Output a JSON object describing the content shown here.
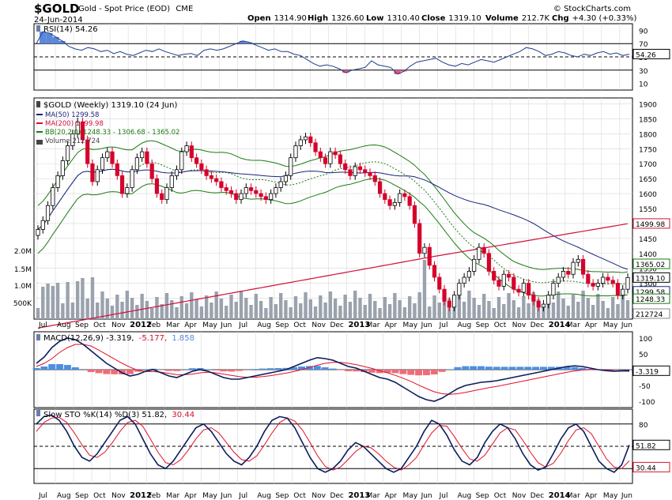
{
  "header": {
    "symbol": "$GOLD",
    "description": "Gold - Spot Price (EOD)",
    "exchange": "CME",
    "date": "24-Jun-2014",
    "brand": "© StockCharts.com",
    "ohlc": [
      {
        "label": "Open",
        "value": "1314.90"
      },
      {
        "label": "High",
        "value": "1326.60"
      },
      {
        "label": "Low",
        "value": "1310.40"
      },
      {
        "label": "Close",
        "value": "1319.10"
      },
      {
        "label": "Volume",
        "value": "212.7K"
      },
      {
        "label": "Chg",
        "value": "+4.30 (+0.33%)"
      }
    ]
  },
  "colors": {
    "background": "#ffffff",
    "panel_border": "#000000",
    "grid": "#d8d8d8",
    "candle_up": "#000000",
    "candle_down": "#d6002a",
    "ma50": "#1a237e",
    "ma200": "#d0103a",
    "bb": "#1b7a12",
    "volume": "#9aa2ad",
    "rsi": "#1f3f8c",
    "rsi_fill_high": "#5b88d8",
    "rsi_fill_low": "#e05a86",
    "macd_line": "#0b1d5c",
    "macd_signal": "#e0102a",
    "hist_pos": "#4d8fe0",
    "hist_neg": "#f06b78",
    "sto_k": "#0b1d5c",
    "sto_d": "#e0102a"
  },
  "x_axis": {
    "labels": [
      "Jul",
      "Aug",
      "Sep",
      "Oct",
      "Nov",
      "2012",
      "Feb",
      "Mar",
      "Apr",
      "May",
      "Jun",
      "Jul",
      "Aug",
      "Sep",
      "Oct",
      "Nov",
      "Dec",
      "2013",
      "Mar",
      "Apr",
      "May",
      "Jun",
      "Jul",
      "Aug",
      "Sep",
      "Oct",
      "Nov",
      "Dec",
      "2014",
      "Mar",
      "Apr",
      "May",
      "Jun"
    ],
    "year_labels": [
      "2012",
      "2013",
      "2014"
    ]
  },
  "rsi_panel": {
    "title": "RSI(14) 54.26",
    "badge": "54.26",
    "ticks": [
      "90",
      "70",
      "50",
      "30",
      "10"
    ]
  },
  "price_panel": {
    "title": "$GOLD (Weekly) 1319.10 (24 Jun)",
    "legend": [
      {
        "id": "ma50",
        "text": "MA(50) 1299.58"
      },
      {
        "id": "ma200",
        "text": "MA(200) 1499.98"
      },
      {
        "id": "bb",
        "text": "BB(20,2.0) 1248.33 - 1306.68 - 1365.02"
      },
      {
        "id": "vol",
        "text": "Volume 212,724"
      }
    ],
    "ticks": [
      "1900",
      "1850",
      "1800",
      "1750",
      "1700",
      "1650",
      "1600",
      "1550",
      "1500",
      "1450",
      "1400",
      "1350",
      "1300",
      "1250",
      "1200"
    ],
    "volume_ticks": [
      "2.0M",
      "1.5M",
      "1.0M",
      "500K"
    ],
    "badges": {
      "ma200": "1499.98",
      "bb_upper": "1365.02",
      "close": "1319.10",
      "ma50": "1299.58",
      "bb_lower": "1248.33",
      "volume": "212724"
    }
  },
  "macd_panel": {
    "title_main": "MACD(12,26,9) -3.319,",
    "title_signal": "-5.177,",
    "title_hist": "1.858",
    "badge": "-3.319",
    "ticks": [
      "100",
      "50",
      "0",
      "-50",
      "-100"
    ]
  },
  "sto_panel": {
    "title_main": "Slow STO %K(14) %D(3) 51.82,",
    "title_d": "30.44",
    "badge_k": "51.82",
    "badge_d": "30.44",
    "ticks": [
      "80",
      "20"
    ]
  },
  "chart_data": [
    {
      "type": "line",
      "name": "RSI(14)",
      "x_range": [
        "Jul 2011",
        "Jun 2014"
      ],
      "ylim": [
        0,
        100
      ],
      "reference_lines": [
        70,
        50,
        30
      ],
      "last_value": 54.26,
      "values": [
        70,
        88,
        86,
        80,
        74,
        66,
        62,
        60,
        64,
        62,
        58,
        60,
        55,
        58,
        54,
        52,
        56,
        60,
        58,
        62,
        58,
        55,
        52,
        54,
        55,
        52,
        60,
        62,
        60,
        62,
        66,
        70,
        74,
        72,
        68,
        64,
        60,
        62,
        58,
        58,
        54,
        52,
        46,
        40,
        36,
        38,
        36,
        32,
        26,
        30,
        32,
        34,
        44,
        38,
        36,
        34,
        24,
        28,
        36,
        42,
        44,
        46,
        48,
        42,
        38,
        36,
        40,
        38,
        42,
        46,
        44,
        42,
        46,
        50,
        54,
        58,
        64,
        62,
        58,
        52,
        54,
        58,
        56,
        52,
        50,
        54,
        52,
        56,
        58,
        54,
        56,
        52,
        54
      ]
    },
    {
      "type": "candlestick",
      "name": "$GOLD (Weekly)",
      "x_range": [
        "Jul 2011",
        "Jun 2014"
      ],
      "ylim": [
        1180,
        1920
      ],
      "last_close": 1319.1,
      "ma50_last": 1299.58,
      "ma200_last": 1499.98,
      "bb_upper_last": 1365.02,
      "bb_mid_last": 1306.68,
      "bb_lower_last": 1248.33,
      "close_values": [
        1480,
        1510,
        1560,
        1620,
        1660,
        1710,
        1760,
        1800,
        1840,
        1780,
        1700,
        1640,
        1680,
        1720,
        1740,
        1700,
        1660,
        1600,
        1620,
        1680,
        1720,
        1740,
        1700,
        1650,
        1600,
        1580,
        1620,
        1660,
        1680,
        1740,
        1760,
        1720,
        1700,
        1680,
        1660,
        1650,
        1640,
        1620,
        1610,
        1600,
        1580,
        1600,
        1620,
        1610,
        1600,
        1590,
        1580,
        1600,
        1620,
        1640,
        1660,
        1720,
        1760,
        1780,
        1790,
        1770,
        1740,
        1720,
        1700,
        1740,
        1730,
        1700,
        1680,
        1660,
        1690,
        1680,
        1670,
        1660,
        1640,
        1600,
        1580,
        1560,
        1570,
        1600,
        1590,
        1560,
        1500,
        1400,
        1420,
        1360,
        1320,
        1280,
        1240,
        1220,
        1260,
        1300,
        1320,
        1340,
        1380,
        1420,
        1400,
        1340,
        1310,
        1290,
        1330,
        1320,
        1280,
        1270,
        1300,
        1260,
        1240,
        1220,
        1230,
        1260,
        1300,
        1320,
        1340,
        1330,
        1370,
        1380,
        1330,
        1300,
        1290,
        1300,
        1320,
        1310,
        1300,
        1260,
        1280,
        1319.1
      ],
      "volume_scale_ticks": [
        "2.0M",
        "1.5M",
        "1.0M",
        "500K"
      ]
    },
    {
      "type": "line",
      "name": "MACD(12,26,9)",
      "x_range": [
        "Jul 2011",
        "Jun 2014"
      ],
      "ylim": [
        -120,
        120
      ],
      "reference_lines": [
        0
      ],
      "last": {
        "macd": -3.319,
        "signal": -5.177,
        "histogram": 1.858
      },
      "macd_values": [
        20,
        40,
        70,
        90,
        100,
        95,
        80,
        60,
        40,
        20,
        5,
        -10,
        -20,
        -15,
        -5,
        0,
        -10,
        -20,
        -25,
        -15,
        -5,
        0,
        -5,
        -15,
        -25,
        -30,
        -30,
        -25,
        -20,
        -15,
        -10,
        -5,
        0,
        10,
        20,
        30,
        38,
        35,
        30,
        20,
        10,
        5,
        -5,
        -15,
        -25,
        -30,
        -40,
        -55,
        -70,
        -85,
        -95,
        -100,
        -90,
        -75,
        -60,
        -50,
        -45,
        -40,
        -38,
        -35,
        -30,
        -25,
        -20,
        -15,
        -10,
        -5,
        0,
        5,
        10,
        12,
        10,
        5,
        0,
        -3,
        -5,
        -4,
        -3.3
      ],
      "signal_values": [
        10,
        20,
        35,
        55,
        70,
        80,
        80,
        75,
        62,
        48,
        34,
        20,
        8,
        -2,
        -6,
        -6,
        -8,
        -12,
        -16,
        -16,
        -14,
        -10,
        -8,
        -10,
        -14,
        -18,
        -22,
        -24,
        -24,
        -22,
        -19,
        -15,
        -11,
        -6,
        0,
        7,
        14,
        20,
        23,
        23,
        20,
        16,
        10,
        4,
        -3,
        -10,
        -18,
        -27,
        -37,
        -49,
        -60,
        -70,
        -76,
        -78,
        -76,
        -72,
        -67,
        -62,
        -57,
        -53,
        -48,
        -43,
        -38,
        -33,
        -28,
        -23,
        -18,
        -13,
        -8,
        -4,
        -1,
        0,
        0,
        -1,
        -3,
        -4,
        -5.2
      ]
    },
    {
      "type": "line",
      "name": "Slow STO %K(14) %D(3)",
      "x_range": [
        "Jul 2011",
        "Jun 2014"
      ],
      "ylim": [
        0,
        100
      ],
      "reference_lines": [
        80,
        50,
        20
      ],
      "last": {
        "k": 51.82,
        "d": 30.44
      },
      "k_values": [
        80,
        90,
        92,
        85,
        70,
        50,
        35,
        30,
        40,
        55,
        70,
        85,
        90,
        80,
        60,
        40,
        25,
        20,
        30,
        45,
        60,
        75,
        80,
        70,
        55,
        40,
        30,
        25,
        35,
        50,
        70,
        85,
        90,
        88,
        75,
        55,
        35,
        20,
        15,
        20,
        30,
        45,
        55,
        50,
        40,
        30,
        20,
        15,
        20,
        35,
        50,
        70,
        85,
        80,
        65,
        45,
        30,
        25,
        35,
        55,
        70,
        80,
        75,
        60,
        40,
        25,
        18,
        22,
        40,
        60,
        75,
        80,
        70,
        50,
        30,
        20,
        15,
        25,
        51.82
      ],
      "d_values": [
        70,
        82,
        88,
        89,
        82,
        68,
        52,
        38,
        35,
        42,
        55,
        70,
        82,
        85,
        77,
        60,
        42,
        28,
        25,
        32,
        45,
        60,
        72,
        75,
        68,
        55,
        42,
        32,
        30,
        37,
        52,
        68,
        82,
        88,
        84,
        72,
        55,
        37,
        23,
        18,
        22,
        32,
        43,
        50,
        48,
        40,
        30,
        22,
        18,
        25,
        35,
        52,
        68,
        78,
        77,
        63,
        47,
        33,
        30,
        38,
        53,
        68,
        75,
        72,
        58,
        42,
        28,
        22,
        27,
        41,
        58,
        72,
        75,
        67,
        50,
        33,
        22,
        20,
        30.44
      ]
    }
  ]
}
